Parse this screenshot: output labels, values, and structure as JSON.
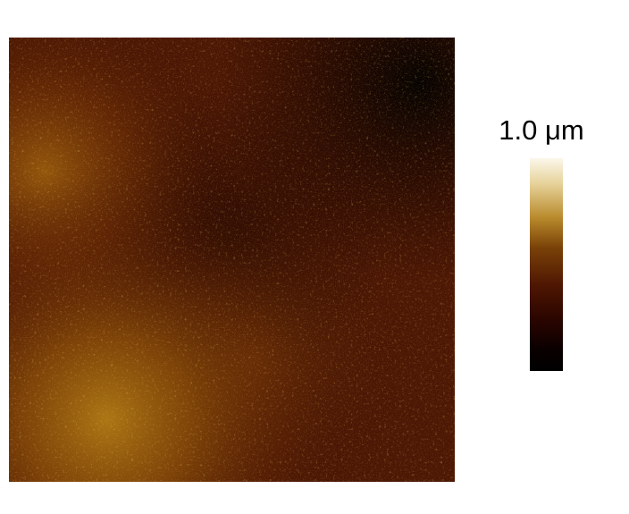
{
  "scale_bar": {
    "max_label": "1.0 μm"
  },
  "colors": {
    "background": "#ffffff",
    "height_low": "#000000",
    "height_mid": "#5a1a02",
    "height_high": "#c8901f",
    "height_max": "#fbf7ea"
  }
}
